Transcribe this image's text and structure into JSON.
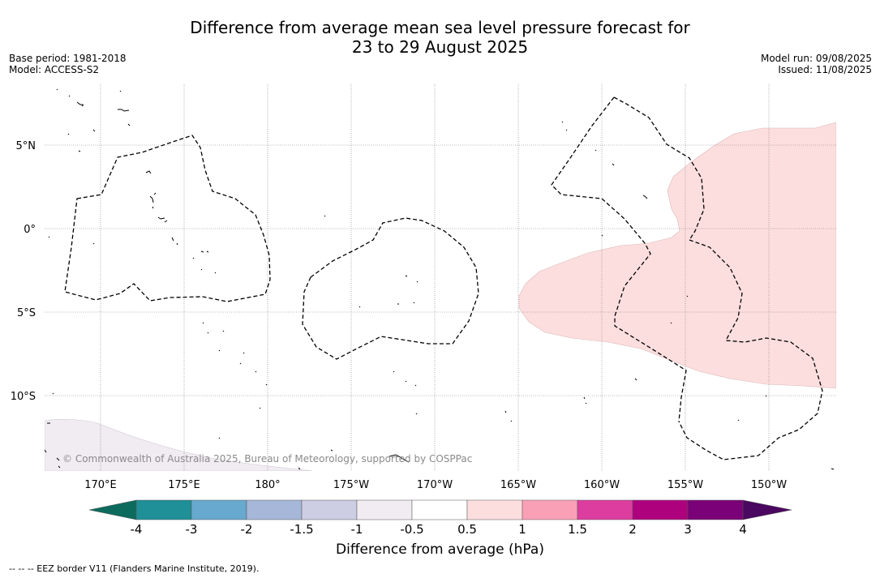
{
  "title": {
    "line1": "Difference from average mean sea level pressure forecast for",
    "line2": "23 to 29 August 2025"
  },
  "meta_left": {
    "base_period": "Base period: 1981-2018",
    "model": "Model: ACCESS-S2"
  },
  "meta_right": {
    "model_run": "Model run: 09/08/2025",
    "issued": "Issued: 11/08/2025"
  },
  "map": {
    "lon_labels": [
      "170°E",
      "175°E",
      "180°",
      "175°W",
      "170°W",
      "165°W",
      "160°W",
      "155°W",
      "150°W"
    ],
    "lat_labels": [
      "5°N",
      "0°",
      "5°S",
      "10°S"
    ],
    "copyright": "© Commonwealth of Australia 2025, Bureau of Meteorology, supported by COSPPac",
    "anomaly_regions": [
      {
        "range": "0.5 to 1",
        "color": "#fddede",
        "area": "east, approx 166°W–146°W, 6°N–10°S"
      },
      {
        "range": "-1 to -0.5",
        "color": "#f0ecf1",
        "area": "south-west corner, approx 10°S–15°S"
      }
    ]
  },
  "colorbar": {
    "title": "Difference from average (hPa)",
    "tick_labels": [
      "-4",
      "-3",
      "-2",
      "-1.5",
      "-1",
      "-0.5",
      "0.5",
      "1",
      "1.5",
      "2",
      "3",
      "4"
    ],
    "low_extend_color": "#0d6b5e",
    "high_extend_color": "#4b0860",
    "segments": [
      {
        "range": "-4 to -3",
        "color": "#1f8f98"
      },
      {
        "range": "-3 to -2",
        "color": "#67a9cf"
      },
      {
        "range": "-2 to -1.5",
        "color": "#a6b7d9"
      },
      {
        "range": "-1.5 to -1",
        "color": "#cdcde3"
      },
      {
        "range": "-1 to -0.5",
        "color": "#f0ecf1"
      },
      {
        "range": "-0.5 to 0.5",
        "color": "#ffffff"
      },
      {
        "range": "0.5 to 1",
        "color": "#fddede"
      },
      {
        "range": "1 to 1.5",
        "color": "#f9a0b7"
      },
      {
        "range": "1.5 to 2",
        "color": "#dd3d9f"
      },
      {
        "range": "2 to 3",
        "color": "#ae017e"
      },
      {
        "range": "3 to 4",
        "color": "#7a0177"
      }
    ]
  },
  "footnote": "--  --  -- EEZ border V11 (Flanders Marine Institute, 2019)."
}
